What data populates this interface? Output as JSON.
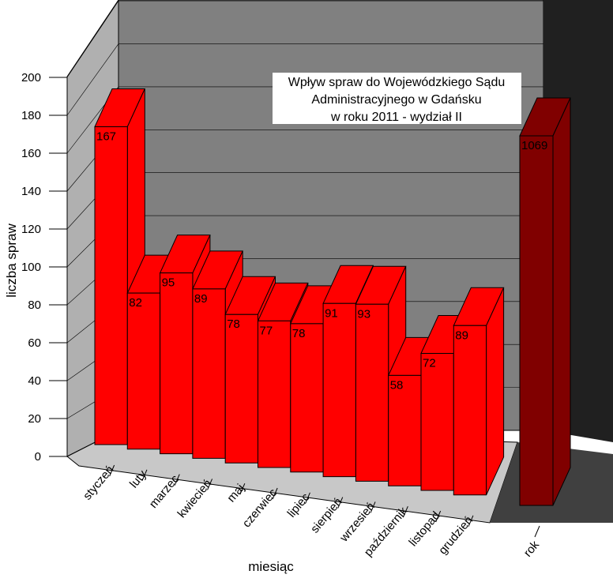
{
  "chart_data": [
    {
      "type": "bar",
      "title": [
        "Wpływ spraw do Wojewódzkiego Sądu",
        "Administracyjnego w Gdańsku",
        "w roku 2011 - wydział II"
      ],
      "ylabel": "liczba spraw",
      "xlabel": "miesiąc",
      "categories": [
        "styczeń",
        "luty",
        "marzec",
        "kwiecień",
        "maj",
        "czerwiec",
        "lipiec",
        "sierpień",
        "wrzesień",
        "październik",
        "listopad",
        "grudzień"
      ],
      "values": [
        167,
        82,
        95,
        89,
        78,
        77,
        78,
        91,
        93,
        58,
        72,
        89
      ],
      "color": "#ff0000",
      "ylim": [
        0,
        200
      ],
      "yticks": [
        0,
        20,
        40,
        60,
        80,
        100,
        120,
        140,
        160,
        180,
        200
      ],
      "grid": true
    },
    {
      "type": "bar",
      "categories": [
        "rok"
      ],
      "values": [
        1069
      ],
      "color": "#800000",
      "ylim": [
        0,
        1100
      ]
    }
  ]
}
